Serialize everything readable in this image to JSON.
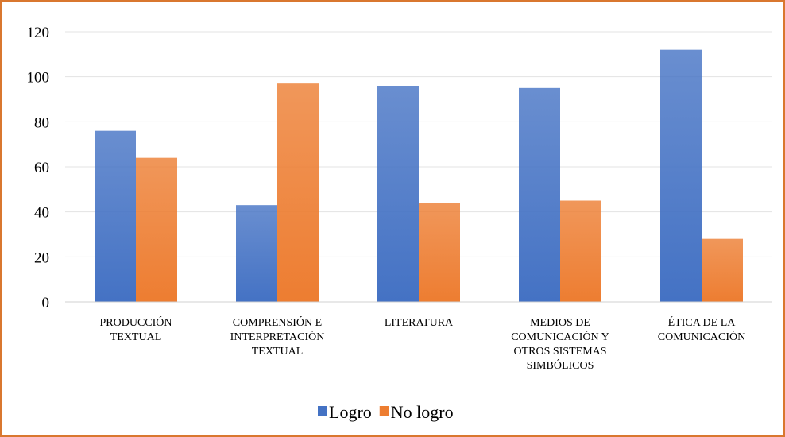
{
  "chart_data": {
    "type": "bar",
    "categories": [
      "PRODUCCIÓN TEXTUAL",
      "COMPRENSIÓN E INTERPRETACIÓN TEXTUAL",
      "LITERATURA",
      "MEDIOS DE COMUNICACIÓN Y OTROS SISTEMAS SIMBÓLICOS",
      "ÉTICA DE LA COMUNICACIÓN"
    ],
    "series": [
      {
        "name": "Logro",
        "color": "#4472c4",
        "values": [
          76,
          43,
          96,
          95,
          112
        ]
      },
      {
        "name": "No logro",
        "color": "#ed7d31",
        "values": [
          64,
          97,
          44,
          45,
          28
        ]
      }
    ],
    "ylim": [
      0,
      120
    ],
    "yticks": [
      0,
      20,
      40,
      60,
      80,
      100,
      120
    ],
    "grid": true,
    "legend": "bottom"
  }
}
